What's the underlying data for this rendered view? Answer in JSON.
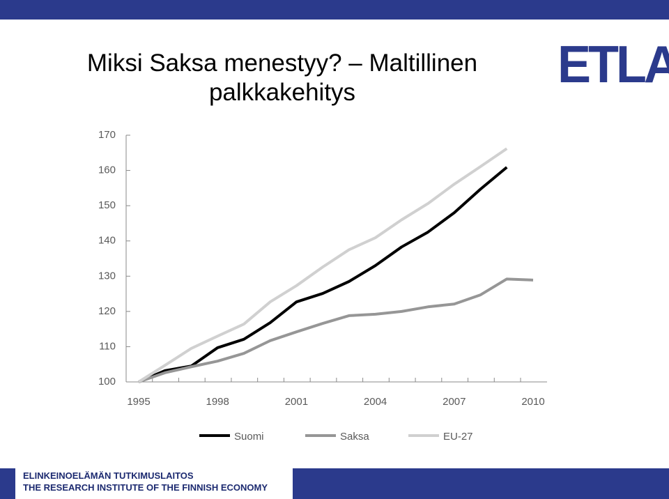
{
  "header": {
    "logo": "ETLA"
  },
  "chart_data": {
    "type": "line",
    "title": "Miksi Saksa menestyy? – Maltillinen palkkakehitys",
    "x": [
      1995,
      1996,
      1997,
      1998,
      1999,
      2000,
      2001,
      2002,
      2003,
      2004,
      2005,
      2006,
      2007,
      2008,
      2009,
      2010
    ],
    "xlim": [
      1995,
      2010
    ],
    "xticks": [
      1995,
      1998,
      2001,
      2004,
      2007,
      2010
    ],
    "ylim": [
      100,
      170
    ],
    "yticks": [
      100,
      110,
      120,
      130,
      140,
      150,
      160,
      170
    ],
    "legend": "bottom",
    "series": [
      {
        "name": "Suomi",
        "color": "#000000",
        "values": [
          100,
          103.2,
          104.5,
          109.7,
          112.1,
          116.8,
          122.7,
          125.1,
          128.5,
          133,
          138.3,
          142.5,
          148,
          154.7,
          160.9,
          null
        ]
      },
      {
        "name": "Saksa",
        "color": "#969696",
        "values": [
          100,
          102.6,
          104.3,
          105.9,
          108.1,
          111.7,
          114.2,
          116.6,
          118.8,
          119.2,
          120,
          121.3,
          122.1,
          124.7,
          129.2,
          128.9
        ]
      },
      {
        "name": "EU-27",
        "color": "#d0d0d0",
        "values": [
          100,
          104.7,
          109.5,
          113,
          116.4,
          122.7,
          127.3,
          132.6,
          137.5,
          140.9,
          146,
          150.6,
          156.1,
          161.1,
          166.2,
          null
        ]
      }
    ]
  },
  "footer": {
    "line1": "ELINKEINOELÄMÄN TUTKIMUSLAITOS",
    "line2": "THE RESEARCH INSTITUTE OF THE FINNISH ECONOMY"
  }
}
